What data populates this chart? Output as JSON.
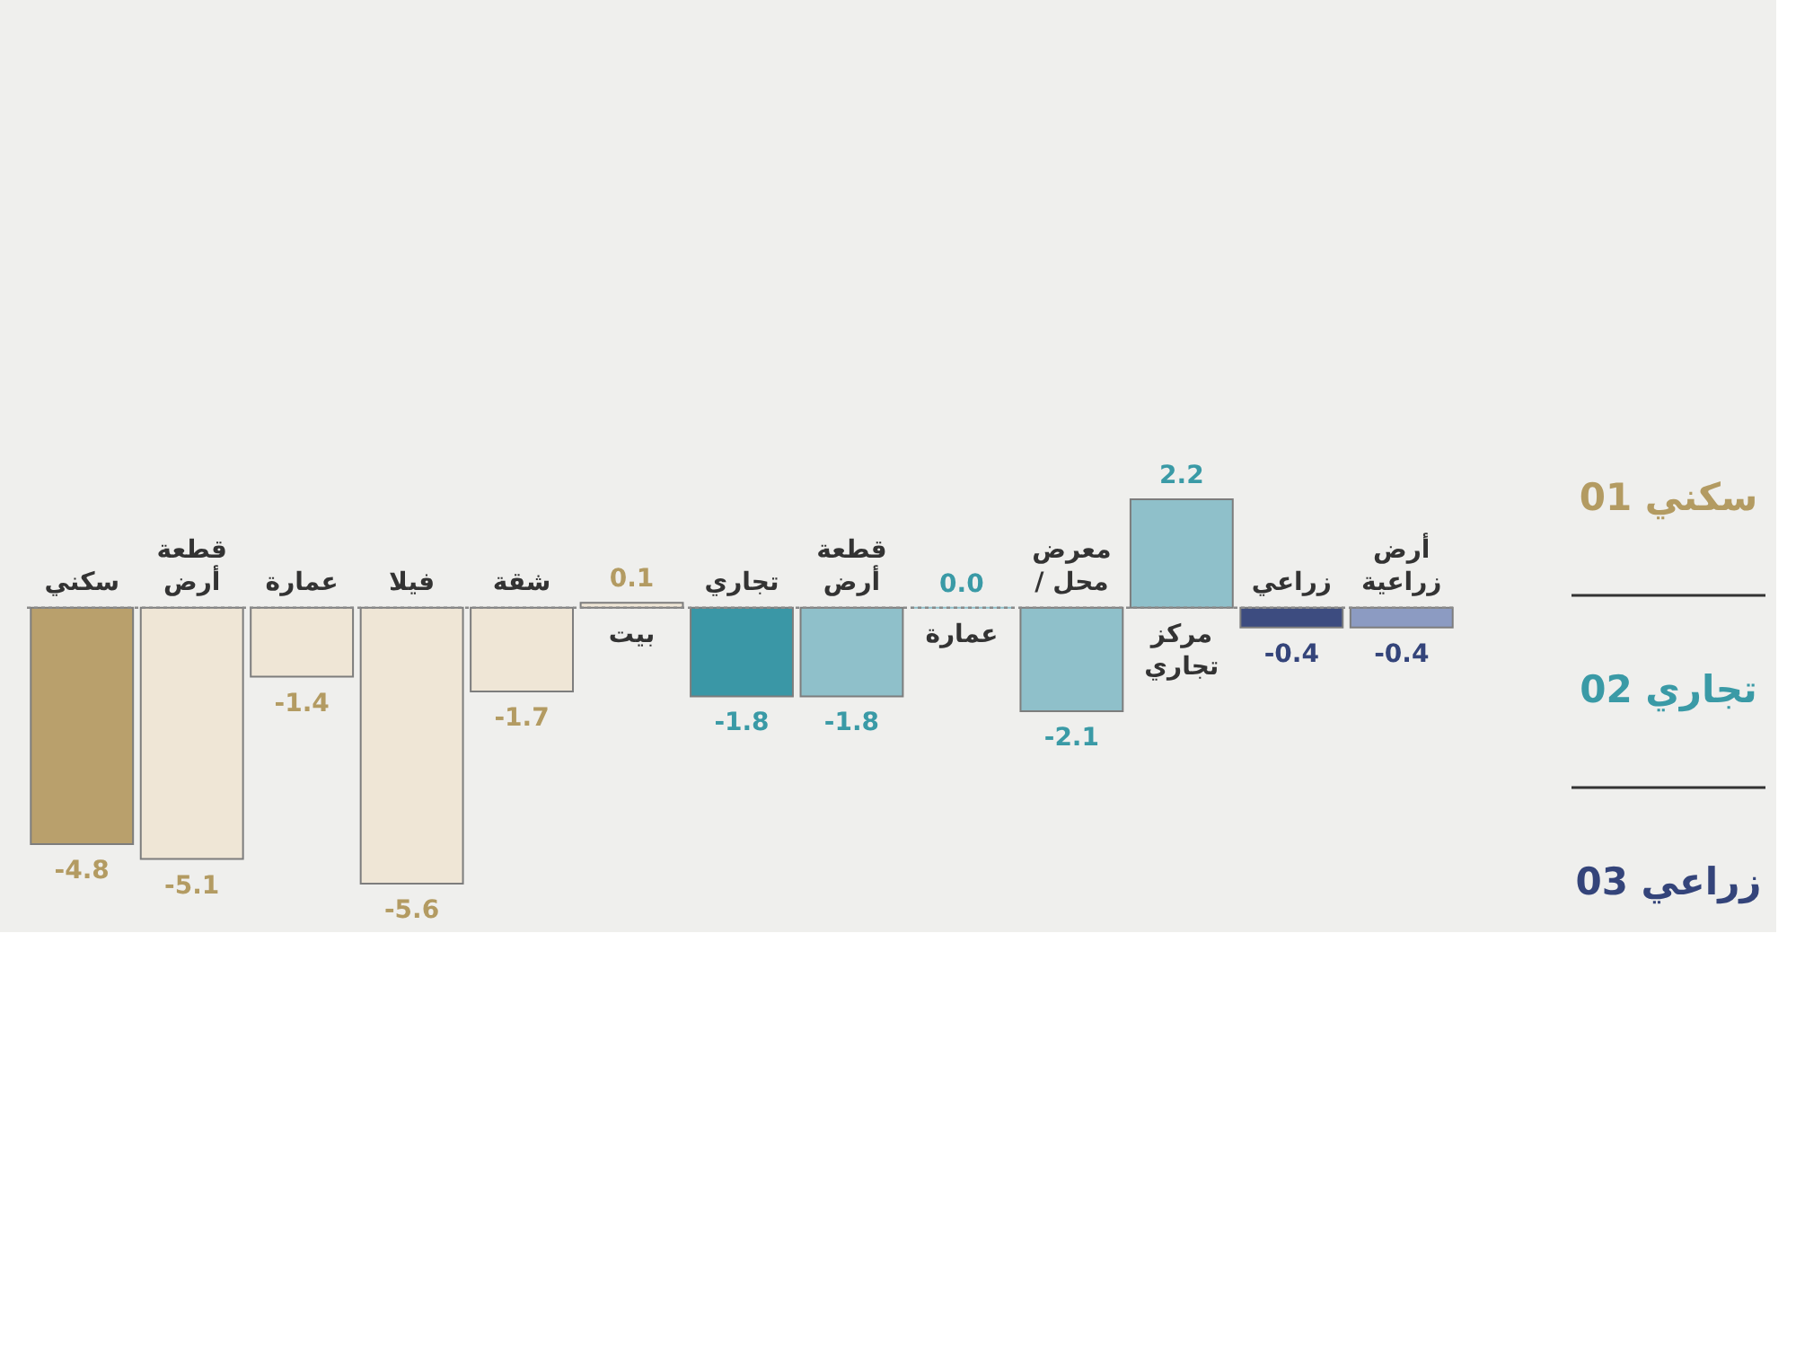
{
  "chart_data": {
    "type": "bar",
    "categories": [
      "سكني",
      "قطعة أرض",
      "عمارة",
      "فيلا",
      "شقة",
      "بيت",
      "تجاري",
      "قطعة أرض",
      "عمارة",
      "معرض / محل",
      "مركز تجاري",
      "زراعي",
      "أرض زراعية"
    ],
    "series": [
      {
        "name": "سكني 01",
        "color": "#b39b62",
        "colors": [
          "#b9a06c",
          "#efe6d6",
          "#efe6d6",
          "#efe6d6",
          "#efe6d6",
          "#efe6d6",
          null,
          null,
          null,
          null,
          null,
          null,
          null
        ],
        "values": [
          -4.8,
          -5.1,
          -1.4,
          -5.6,
          -1.7,
          0.1,
          null,
          null,
          null,
          null,
          null,
          null,
          null
        ],
        "value_labels": [
          "-4.8",
          "-5.1",
          "-1.4",
          "-5.6",
          "-1.7",
          "0.1",
          null,
          null,
          null,
          null,
          null,
          null,
          null
        ]
      },
      {
        "name": "تجاري 02",
        "color": "#3a9aa6",
        "colors": [
          null,
          null,
          null,
          null,
          null,
          null,
          "#3a97a6",
          "#8fc0ca",
          "#8fc0ca",
          "#8fc0ca",
          "#8fc0ca",
          null,
          null
        ],
        "values": [
          null,
          null,
          null,
          null,
          null,
          null,
          -1.8,
          -1.8,
          0.0,
          -2.1,
          2.2,
          null,
          null
        ],
        "value_labels": [
          null,
          null,
          null,
          null,
          null,
          null,
          "-1.8",
          "-1.8",
          "0.0",
          "-2.1",
          "2.2",
          null,
          null
        ]
      },
      {
        "name": "زراعي 03",
        "color": "#34447a",
        "colors": [
          null,
          null,
          null,
          null,
          null,
          null,
          null,
          null,
          null,
          null,
          null,
          "#3d4c80",
          "#8c9bc2"
        ],
        "values": [
          null,
          null,
          null,
          null,
          null,
          null,
          null,
          null,
          null,
          null,
          null,
          -0.4,
          -0.4
        ],
        "value_labels": [
          null,
          null,
          null,
          null,
          null,
          null,
          null,
          null,
          null,
          null,
          null,
          "-0.4",
          "-0.4"
        ]
      }
    ],
    "legend": "right",
    "ref_lines": [
      {
        "axis": "y",
        "value": 0,
        "color": "#8a8a8a",
        "line_style": "dotted"
      }
    ]
  }
}
